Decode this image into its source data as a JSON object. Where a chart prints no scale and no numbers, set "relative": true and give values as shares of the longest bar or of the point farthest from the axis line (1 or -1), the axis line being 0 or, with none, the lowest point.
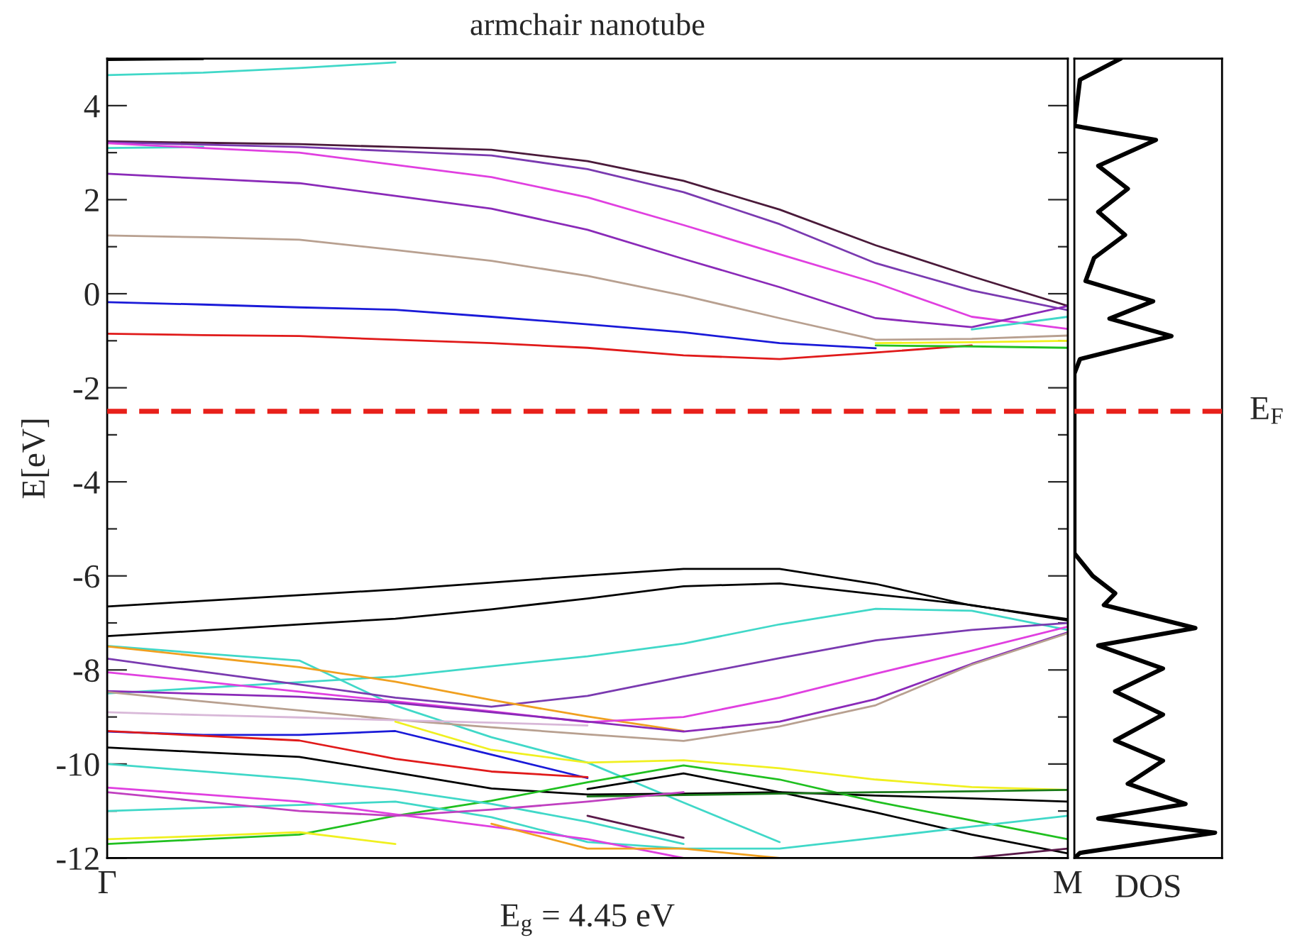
{
  "chart_data": [
    {
      "type": "line",
      "title": "armchair nanotube",
      "xlabel": "E$_{g}$ = 4.45 eV",
      "ylabel": "E[eV]",
      "categories": [
        "Γ",
        null,
        null,
        null,
        null,
        null,
        null,
        null,
        null,
        null,
        "M"
      ],
      "ylim": [
        -12,
        5
      ],
      "yticks": [
        -12,
        {
          "value": -11,
          "label": null
        },
        -10,
        {
          "value": -9,
          "label": null
        },
        -8,
        {
          "value": -7,
          "label": null
        },
        -6,
        {
          "value": -5,
          "label": null
        },
        -4,
        {
          "value": -3,
          "label": null
        },
        -2,
        {
          "value": -1,
          "label": null
        },
        0,
        {
          "value": 1,
          "label": null
        },
        2,
        {
          "value": 3,
          "label": null
        },
        4
      ],
      "grid": false,
      "legend": false,
      "marker": "none",
      "line_style": "solid",
      "ref_lines": [
        {
          "axis": "y",
          "value": -2.5,
          "color": "#e8201a",
          "line_style": "dashed"
        }
      ],
      "series": [
        {
          "color": "#000000",
          "values": [
            4.97,
            4.99,
            null,
            null,
            null,
            null,
            null,
            null,
            null,
            null,
            null
          ]
        },
        {
          "color": "#40d8c8",
          "values": [
            4.65,
            4.7,
            4.8,
            4.92,
            null,
            null,
            null,
            null,
            null,
            null,
            null
          ]
        },
        {
          "color": "#4a1a3a",
          "values": [
            3.24,
            3.21,
            3.18,
            3.12,
            3.06,
            2.82,
            2.4,
            1.79,
            1.03,
            0.37,
            -0.26
          ]
        },
        {
          "color": "#7a3ab0",
          "values": [
            3.22,
            3.17,
            3.12,
            3.03,
            2.94,
            2.65,
            2.16,
            1.48,
            0.65,
            0.07,
            -0.35
          ]
        },
        {
          "color": "#40d8c8",
          "values": [
            3.1,
            3.12,
            null,
            null,
            null,
            null,
            null,
            null,
            null,
            null,
            null
          ]
        },
        {
          "color": "#e040e0",
          "values": [
            3.2,
            3.1,
            3.0,
            2.74,
            2.48,
            2.05,
            1.46,
            0.84,
            0.23,
            -0.49,
            -0.75
          ]
        },
        {
          "color": "#8a2ab8",
          "values": [
            2.55,
            2.45,
            2.35,
            2.08,
            1.81,
            1.36,
            0.74,
            0.14,
            -0.52,
            -0.71,
            -0.26
          ]
        },
        {
          "color": "#b8a090",
          "values": [
            1.24,
            1.2,
            1.15,
            0.93,
            0.7,
            0.38,
            -0.04,
            -0.52,
            -0.98,
            -0.96,
            -0.89
          ]
        },
        {
          "color": "#1a1ad8",
          "values": [
            -0.18,
            -0.23,
            -0.29,
            -0.34,
            -0.49,
            -0.65,
            -0.82,
            -1.05,
            -1.16,
            null,
            null
          ]
        },
        {
          "color": "#40d8c8",
          "values": [
            null,
            null,
            null,
            null,
            null,
            null,
            null,
            null,
            null,
            -0.76,
            -0.49
          ]
        },
        {
          "color": "#e01a1a",
          "values": [
            -0.85,
            -0.88,
            -0.9,
            -0.98,
            -1.05,
            -1.15,
            -1.31,
            -1.39,
            -1.25,
            -1.1,
            null
          ]
        },
        {
          "color": "#f0f020",
          "values": [
            null,
            null,
            null,
            null,
            null,
            null,
            null,
            null,
            -1.05,
            -1.03,
            -1.0
          ]
        },
        {
          "color": "#20c020",
          "values": [
            null,
            null,
            null,
            null,
            null,
            null,
            null,
            null,
            -1.1,
            -1.12,
            -1.15
          ]
        },
        {
          "color": "#000000",
          "values": [
            -6.65,
            -6.53,
            -6.41,
            -6.29,
            -6.14,
            -5.99,
            -5.85,
            -5.85,
            -6.17,
            -6.63,
            -6.92
          ]
        },
        {
          "color": "#000000",
          "values": [
            -7.28,
            -7.16,
            -7.03,
            -6.91,
            -6.71,
            -6.48,
            -6.22,
            -6.16,
            -6.39,
            -6.62,
            -6.95
          ]
        },
        {
          "color": "#40d8c8",
          "values": [
            -7.49,
            -7.65,
            -7.8,
            -8.76,
            -9.43,
            -9.97,
            -10.82,
            -11.66,
            null,
            null,
            null
          ]
        },
        {
          "color": "#40d8c8",
          "values": [
            -8.5,
            -8.38,
            -8.26,
            -8.14,
            -7.92,
            -7.71,
            -7.44,
            -7.03,
            -6.7,
            -6.74,
            -7.15
          ]
        },
        {
          "color": "#7a3ab0",
          "values": [
            -7.76,
            -8.04,
            -8.31,
            -8.59,
            -8.78,
            -8.55,
            -8.14,
            -7.75,
            -7.37,
            -7.15,
            -7.0
          ]
        },
        {
          "color": "#f0a020",
          "values": [
            -7.5,
            -7.72,
            -7.94,
            -8.25,
            -8.64,
            -8.99,
            -9.3,
            null,
            null,
            null,
            null
          ]
        },
        {
          "color": "#e040e0",
          "values": [
            -8.05,
            -8.25,
            -8.46,
            -8.67,
            -8.88,
            -9.11,
            -9.0,
            -8.59,
            -8.08,
            -7.59,
            -7.08
          ]
        },
        {
          "color": "#8a2ab8",
          "values": [
            -8.45,
            -8.51,
            -8.57,
            -8.7,
            -8.9,
            -9.1,
            -9.31,
            -9.1,
            -8.62,
            -7.87,
            -7.2
          ]
        },
        {
          "color": "#b8a090",
          "values": [
            -8.47,
            -8.67,
            -8.86,
            -9.06,
            -9.22,
            -9.37,
            -9.51,
            -9.2,
            -8.75,
            -7.89,
            -7.22
          ]
        },
        {
          "color": "#d8b8d8",
          "values": [
            -8.9,
            -8.96,
            -9.01,
            -9.07,
            -9.12,
            -9.18,
            null,
            null,
            null,
            null,
            null
          ]
        },
        {
          "color": "#1a1ad8",
          "values": [
            -9.31,
            -9.38,
            -9.38,
            -9.3,
            -9.8,
            -10.3,
            null,
            null,
            null,
            null,
            null
          ]
        },
        {
          "color": "#e01a1a",
          "values": [
            -9.3,
            -9.4,
            -9.5,
            -9.89,
            -10.16,
            -10.28,
            null,
            null,
            null,
            null,
            null
          ]
        },
        {
          "color": "#000000",
          "values": [
            -9.65,
            -9.75,
            -9.85,
            -10.18,
            -10.52,
            -10.65,
            -10.63,
            -10.6,
            -10.67,
            -10.73,
            -10.8
          ]
        },
        {
          "color": "#000000",
          "values": [
            null,
            null,
            null,
            null,
            null,
            -10.53,
            -10.2,
            -10.6,
            -11.03,
            -11.5,
            -11.9
          ]
        },
        {
          "color": "#f0f020",
          "values": [
            null,
            null,
            null,
            -9.1,
            -9.7,
            -9.97,
            -9.92,
            -10.09,
            -10.33,
            -10.49,
            -10.55
          ]
        },
        {
          "color": "#20c020",
          "values": [
            -11.7,
            -11.6,
            -11.5,
            -11.1,
            -10.78,
            -10.39,
            -10.03,
            -10.33,
            -10.8,
            -11.2,
            -11.6
          ]
        },
        {
          "color": "#1a7a1a",
          "values": [
            null,
            null,
            null,
            null,
            null,
            -10.69,
            -10.66,
            -10.63,
            -10.6,
            -10.58,
            -10.55
          ]
        },
        {
          "color": "#40d8c8",
          "values": [
            -10.0,
            -10.16,
            -10.32,
            -10.55,
            -10.85,
            -11.23,
            -11.7,
            null,
            null,
            null,
            null
          ]
        },
        {
          "color": "#40d8c8",
          "values": [
            -11.0,
            -10.93,
            -10.87,
            -10.8,
            -11.13,
            -11.66,
            -11.8,
            -11.8,
            -11.57,
            -11.33,
            -11.1
          ]
        },
        {
          "color": "#e040e0",
          "values": [
            -10.5,
            -10.65,
            -10.8,
            -11.07,
            -11.33,
            -11.6,
            -12.0,
            null,
            null,
            null,
            null
          ]
        },
        {
          "color": "#c040c0",
          "values": [
            -10.6,
            -10.8,
            -11.0,
            -11.1,
            -10.97,
            -10.8,
            -10.6,
            null,
            null,
            null,
            null
          ]
        },
        {
          "color": "#f0a020",
          "values": [
            null,
            null,
            null,
            null,
            -11.27,
            -11.8,
            -11.8,
            -12.0,
            null,
            null,
            null
          ]
        },
        {
          "color": "#f0f020",
          "values": [
            -11.6,
            -11.53,
            -11.45,
            -11.7,
            null,
            null,
            null,
            null,
            null,
            null,
            null
          ]
        },
        {
          "color": "#5a1a4a",
          "values": [
            null,
            null,
            null,
            null,
            null,
            -11.1,
            -11.57,
            null,
            null,
            null,
            null
          ]
        },
        {
          "color": "#5a1a4a",
          "values": [
            null,
            null,
            null,
            null,
            null,
            null,
            null,
            null,
            null,
            -12.0,
            -11.8
          ]
        }
      ]
    },
    {
      "type": "line",
      "orientation": "horizontal",
      "relative": true,
      "xlabel": "DOS",
      "ylim": [
        -12,
        5
      ],
      "tick_labels": false,
      "grid": false,
      "legend": false,
      "marker": "none",
      "line_style": "solid",
      "ref_lines": [
        {
          "axis": "y",
          "value": -2.5,
          "label": "E$_{F}$",
          "color": "#e8201a",
          "line_style": "dashed"
        }
      ],
      "series": [
        {
          "color": "#000000",
          "x": [
            5.0,
            4.55,
            3.57,
            3.27,
            2.72,
            2.23,
            1.74,
            1.25,
            0.76,
            0.27,
            -0.16,
            -0.53,
            -0.9,
            -1.39,
            -1.7,
            -5.52,
            -6.0,
            -6.37,
            -6.62,
            -7.11,
            -7.48,
            -7.97,
            -8.46,
            -8.95,
            -9.5,
            -9.93,
            -10.42,
            -10.85,
            -11.16,
            -11.46,
            -11.89,
            -12.0
          ],
          "values": [
            0.33,
            0.04,
            0,
            0.58,
            0.17,
            0.38,
            0.17,
            0.36,
            0.14,
            0.08,
            0.56,
            0.25,
            0.69,
            0.04,
            0,
            0,
            0.13,
            0.29,
            0.21,
            0.86,
            0.17,
            0.63,
            0.29,
            0.63,
            0.29,
            0.63,
            0.38,
            0.79,
            0.17,
            1.0,
            0.04,
            0
          ]
        }
      ]
    }
  ]
}
